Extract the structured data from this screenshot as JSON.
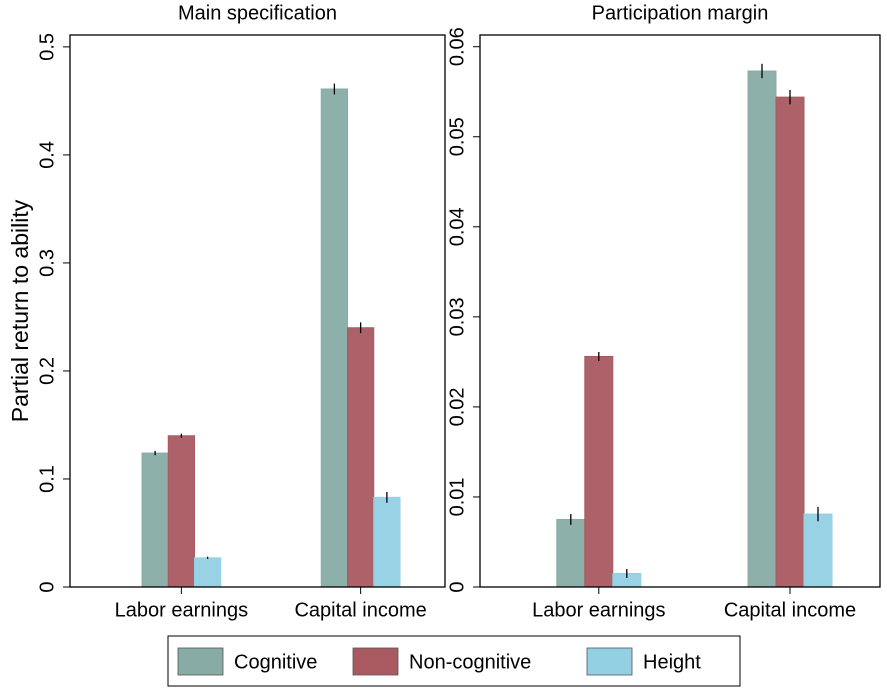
{
  "chart_data": [
    {
      "type": "bar",
      "title": "Main specification",
      "y_label": "Partial return to ability",
      "categories": [
        "Labor earnings",
        "Capital income"
      ],
      "series": [
        {
          "name": "Cognitive",
          "color": "#88aca5",
          "values": [
            0.124,
            0.461
          ],
          "errors": [
            0.002,
            0.005
          ]
        },
        {
          "name": "Non-cognitive",
          "color": "#a85a60",
          "values": [
            0.14,
            0.24
          ],
          "errors": [
            0.002,
            0.005
          ]
        },
        {
          "name": "Height",
          "color": "#94d0e4",
          "values": [
            0.027,
            0.083
          ],
          "errors": [
            0.001,
            0.005
          ]
        }
      ],
      "ylim": [
        0,
        0.511
      ],
      "yticks": [
        0,
        0.1,
        0.2,
        0.3,
        0.4,
        0.5
      ]
    },
    {
      "type": "bar",
      "title": "Participation margin",
      "categories": [
        "Labor earnings",
        "Capital income"
      ],
      "series": [
        {
          "name": "Cognitive",
          "color": "#88aca5",
          "values": [
            0.0075,
            0.0573
          ],
          "errors": [
            0.0006,
            0.0008
          ]
        },
        {
          "name": "Non-cognitive",
          "color": "#a85a60",
          "values": [
            0.0256,
            0.0544
          ],
          "errors": [
            0.0005,
            0.0008
          ]
        },
        {
          "name": "Height",
          "color": "#94d0e4",
          "values": [
            0.0015,
            0.0081
          ],
          "errors": [
            0.0005,
            0.0008
          ]
        }
      ],
      "ylim": [
        0,
        0.0613
      ],
      "yticks": [
        0,
        0.01,
        0.02,
        0.03,
        0.04,
        0.05,
        0.06
      ]
    }
  ]
}
